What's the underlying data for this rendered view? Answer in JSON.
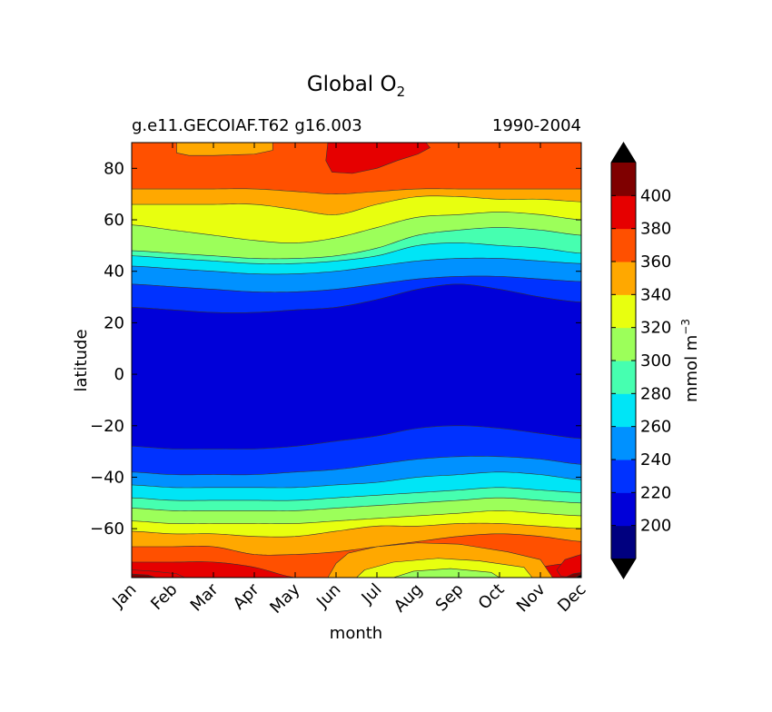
{
  "chart_data": {
    "type": "heatmap",
    "subtype": "filled-contour",
    "title": "Global O",
    "title_subscript": "2",
    "subtitle_left": "g.e11.GECOIAF.T62 g16.003",
    "subtitle_right": "1990-2004",
    "xlabel": "month",
    "ylabel": "latitude",
    "x_categories": [
      "Jan",
      "Feb",
      "Mar",
      "Apr",
      "May",
      "Jun",
      "Jul",
      "Aug",
      "Sep",
      "Oct",
      "Nov",
      "Dec"
    ],
    "y_ticks": [
      80,
      60,
      40,
      20,
      0,
      -20,
      -40,
      -60
    ],
    "y_tick_labels": [
      "80",
      "60",
      "40",
      "20",
      "0",
      "−20",
      "−40",
      "−60"
    ],
    "ylim": [
      -79,
      90
    ],
    "colorbar": {
      "label": "mmol m",
      "label_superscript": "−3",
      "levels": [
        180,
        200,
        220,
        240,
        260,
        280,
        300,
        320,
        340,
        360,
        380,
        400,
        420
      ],
      "tick_values": [
        200,
        220,
        240,
        260,
        280,
        300,
        320,
        340,
        360,
        380,
        400
      ],
      "extend": "both",
      "colors": [
        "#00007f",
        "#0000d9",
        "#0032ff",
        "#0091ff",
        "#00e5f6",
        "#46ffb0",
        "#9cff5a",
        "#e8ff0f",
        "#ffa800",
        "#ff5000",
        "#e60000",
        "#7f0000"
      ],
      "under_color": "#000000",
      "over_color": "#000000"
    },
    "boundaries": [
      {
        "level": 360,
        "lat": [
          72,
          72,
          72,
          72,
          71,
          70,
          71,
          72,
          72,
          72,
          72,
          72
        ]
      },
      {
        "level": 340,
        "lat": [
          66,
          66,
          66,
          66,
          64,
          62,
          66,
          69,
          69,
          68,
          68,
          67
        ]
      },
      {
        "level": 320,
        "lat": [
          58,
          56,
          54,
          52,
          51,
          53,
          57,
          61,
          62,
          63,
          62,
          60
        ]
      },
      {
        "level": 300,
        "lat": [
          48,
          47,
          46,
          45,
          45,
          46,
          49,
          54,
          56,
          57,
          56,
          54
        ]
      },
      {
        "level": 280,
        "lat": [
          46,
          45,
          44,
          43,
          43,
          44,
          46,
          50,
          51,
          50,
          49,
          47
        ]
      },
      {
        "level": 260,
        "lat": [
          42,
          41,
          40,
          39,
          39,
          40,
          42,
          44,
          45,
          45,
          44,
          43
        ]
      },
      {
        "level": 240,
        "lat": [
          35,
          34,
          33,
          32,
          32,
          33,
          35,
          37,
          38,
          38,
          37,
          36
        ]
      },
      {
        "level": 220,
        "lat": [
          26,
          25,
          24,
          24,
          25,
          26,
          29,
          33,
          35,
          33,
          30,
          28
        ]
      },
      {
        "level": 200,
        "lat": [
          -28,
          -29,
          -29,
          -29,
          -28,
          -26,
          -24,
          -21,
          -20,
          -21,
          -23,
          -25
        ]
      },
      {
        "level": 220,
        "lat": [
          -38,
          -39,
          -39,
          -39,
          -38,
          -37,
          -35,
          -33,
          -32,
          -32,
          -33,
          -35
        ]
      },
      {
        "level": 240,
        "lat": [
          -43,
          -44,
          -44,
          -44,
          -44,
          -43,
          -42,
          -40,
          -39,
          -38,
          -39,
          -41
        ]
      },
      {
        "level": 260,
        "lat": [
          -48,
          -49,
          -49,
          -49,
          -49,
          -48,
          -47,
          -46,
          -45,
          -44,
          -45,
          -46
        ]
      },
      {
        "level": 280,
        "lat": [
          -52,
          -53,
          -53,
          -53,
          -53,
          -52,
          -51,
          -50,
          -49,
          -48,
          -49,
          -50
        ]
      },
      {
        "level": 300,
        "lat": [
          -57,
          -58,
          -58,
          -58,
          -58,
          -57,
          -56,
          -55,
          -54,
          -53,
          -54,
          -55
        ]
      },
      {
        "level": 320,
        "lat": [
          -61,
          -62,
          -62,
          -63,
          -63,
          -61,
          -59,
          -59,
          -58,
          -58,
          -59,
          -60
        ]
      },
      {
        "level": 340,
        "lat": [
          -67,
          -67,
          -67,
          -70,
          -70,
          -69,
          -67,
          -65,
          -63,
          -62,
          -63,
          -65
        ]
      },
      {
        "level": 360,
        "lat": [
          -73,
          -73,
          -73,
          -75,
          -79,
          -79,
          -79,
          -79,
          -79,
          -79,
          -75,
          -73
        ]
      }
    ],
    "region_levels": [
      360,
      340,
      320,
      300,
      280,
      260,
      240,
      220,
      200,
      220,
      240,
      260,
      280,
      300,
      320,
      340,
      360,
      380
    ],
    "top_region_level": 360,
    "features": [
      {
        "type": "blob",
        "level": 380,
        "shape": [
          [
            4.8,
            90
          ],
          [
            7.2,
            90
          ],
          [
            7.3,
            88
          ],
          [
            7.0,
            85.5
          ],
          [
            6.5,
            83
          ],
          [
            6.0,
            80
          ],
          [
            5.4,
            78
          ],
          [
            4.9,
            78.5
          ],
          [
            4.75,
            83
          ]
        ]
      },
      {
        "type": "blob",
        "level": 340,
        "shape": [
          [
            1.1,
            90
          ],
          [
            3.45,
            90
          ],
          [
            3.45,
            87
          ],
          [
            3.0,
            85.5
          ],
          [
            2.0,
            85
          ],
          [
            1.4,
            85
          ],
          [
            1.1,
            86
          ]
        ]
      },
      {
        "type": "blob",
        "level": 340,
        "shape": [
          [
            4.8,
            -79
          ],
          [
            10.3,
            -79
          ],
          [
            10.0,
            -72
          ],
          [
            9.2,
            -69
          ],
          [
            8.0,
            -66
          ],
          [
            7.0,
            -65.5
          ],
          [
            6.0,
            -67
          ],
          [
            5.3,
            -69.5
          ],
          [
            5.0,
            -73.5
          ]
        ]
      },
      {
        "type": "blob",
        "level": 320,
        "shape": [
          [
            5.5,
            -79
          ],
          [
            9.8,
            -79
          ],
          [
            9.6,
            -75
          ],
          [
            8.5,
            -72.5
          ],
          [
            7.5,
            -71.5
          ],
          [
            6.4,
            -73
          ],
          [
            5.7,
            -76
          ]
        ]
      },
      {
        "type": "blob",
        "level": 300,
        "shape": [
          [
            6.4,
            -79
          ],
          [
            9.0,
            -79
          ],
          [
            8.8,
            -77
          ],
          [
            7.8,
            -75.5
          ],
          [
            6.9,
            -76.5
          ]
        ]
      },
      {
        "type": "blob",
        "level": 380,
        "shape": [
          [
            0,
            -79
          ],
          [
            1.3,
            -79
          ],
          [
            1.1,
            -77.5
          ],
          [
            0.5,
            -76.5
          ],
          [
            0,
            -76
          ]
        ]
      },
      {
        "type": "blob",
        "level": 380,
        "shape": [
          [
            10.8,
            -79
          ],
          [
            11,
            -79
          ],
          [
            11,
            -70
          ],
          [
            10.6,
            -72
          ],
          [
            10.4,
            -76
          ],
          [
            10.5,
            -78.5
          ]
        ]
      },
      {
        "type": "blob",
        "level": 400,
        "shape": [
          [
            0,
            -79
          ],
          [
            0.6,
            -79
          ],
          [
            0.4,
            -78
          ],
          [
            0,
            -77.6
          ]
        ]
      },
      {
        "type": "blob",
        "level": 400,
        "shape": [
          [
            10.6,
            -79
          ],
          [
            11,
            -79
          ],
          [
            11,
            -77
          ],
          [
            10.8,
            -77.5
          ]
        ]
      },
      {
        "type": "blob",
        "level": 420,
        "shape": [
          [
            10.85,
            -79
          ],
          [
            11,
            -79
          ],
          [
            11,
            -77.8
          ]
        ]
      }
    ]
  }
}
